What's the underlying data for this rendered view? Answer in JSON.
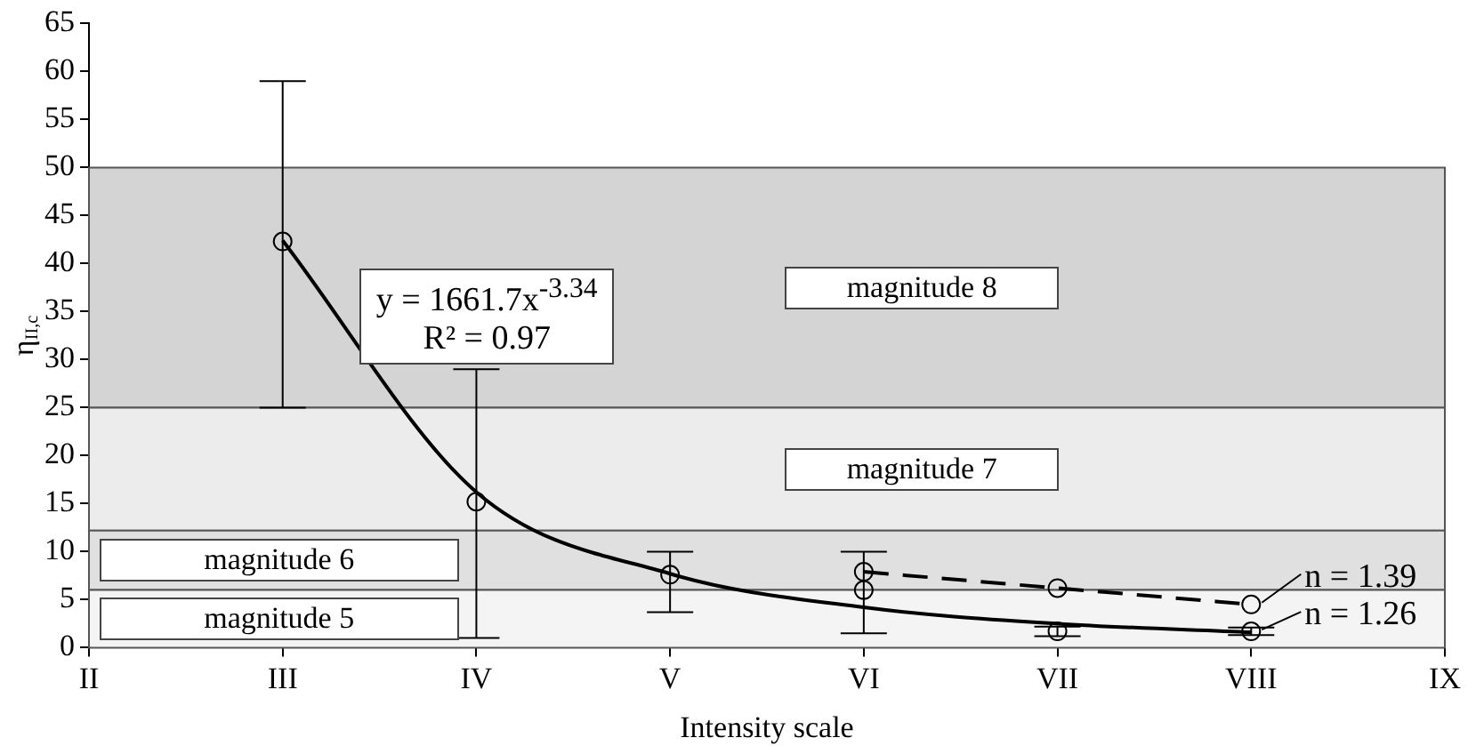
{
  "chart_data": {
    "type": "scatter",
    "xlabel": "Intensity scale",
    "ylabel": "η$_{II,c}$",
    "categories": [
      "II",
      "III",
      "IV",
      "V",
      "VI",
      "VII",
      "VIII",
      "IX"
    ],
    "ylim": [
      0,
      65
    ],
    "yticks": [
      0,
      5,
      10,
      15,
      20,
      25,
      30,
      35,
      40,
      45,
      50,
      55,
      60,
      65
    ],
    "grid": false,
    "legend": false,
    "bands": [
      {
        "axis": "y",
        "from": 25,
        "to": 50,
        "label": "magnitude 8",
        "color": "#d4d4d4"
      },
      {
        "axis": "y",
        "from": 12.2,
        "to": 25,
        "label": "magnitude 7",
        "color": "#ececec"
      },
      {
        "axis": "y",
        "from": 6,
        "to": 12.2,
        "label": "magnitude 6",
        "color": "#e0e0e0"
      },
      {
        "axis": "y",
        "from": 0,
        "to": 6,
        "label": "magnitude 5",
        "color": "#f4f4f4"
      }
    ],
    "series": [
      {
        "color": "#000000",
        "marker": "circle",
        "values": [
          null,
          42.3,
          15.2,
          7.6,
          6.0,
          null,
          null,
          null
        ],
        "errors": [
          null,
          [
            25,
            59
          ],
          [
            1,
            29
          ],
          [
            3.7,
            10
          ],
          [
            1.5,
            10
          ],
          null,
          null,
          null
        ]
      },
      {
        "type": "line",
        "color": "#000000",
        "marker": "circle",
        "line_style": "dashed",
        "values": [
          null,
          null,
          null,
          null,
          7.9,
          6.2,
          4.5,
          null
        ]
      },
      {
        "color": "#000000",
        "marker": "circle",
        "values": [
          null,
          null,
          null,
          null,
          null,
          1.7,
          1.7,
          null
        ],
        "errors": [
          null,
          null,
          null,
          null,
          null,
          [
            1.2,
            2.2
          ],
          [
            1.3,
            2.1
          ],
          null
        ]
      },
      {
        "type": "line",
        "color": "#000000",
        "marker": "none",
        "line_style": "solid",
        "values": [
          null,
          42.4,
          16.2,
          7.7,
          4.2,
          2.5,
          1.6,
          null
        ]
      }
    ],
    "annotations": [
      "y = 1661.7x$^{-3.34}$\nR² = 0.97",
      {
        "text": "n = 1.39",
        "x": "VIII",
        "y": 4.5
      },
      {
        "text": "n = 1.26",
        "x": "VIII",
        "y": 1.7
      }
    ]
  }
}
